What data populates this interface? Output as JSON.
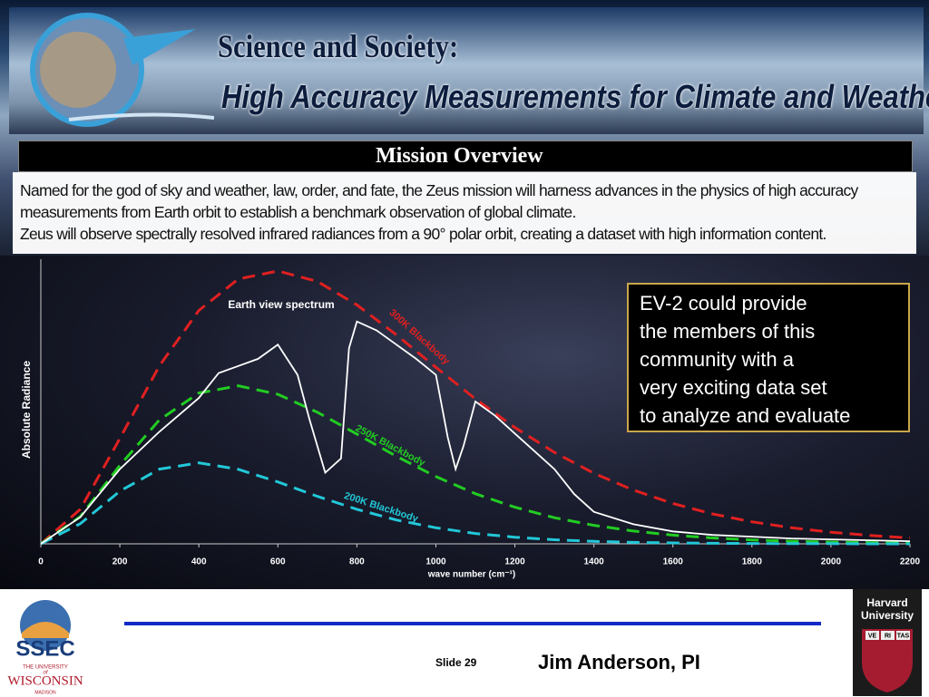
{
  "header": {
    "title": "Science and Society:",
    "subtitle": "High Accuracy Measurements for Climate and Weather",
    "section": "Mission Overview",
    "paragraphs": [
      "Named for the god of sky and weather, law, order, and fate, the Zeus mission will harness advances in the physics of high accuracy measurements from Earth orbit to establish a benchmark observation of global climate.",
      "Zeus will observe spectrally resolved infrared radiances from a 90° polar orbit, creating a dataset with high information content."
    ]
  },
  "chart_data": {
    "type": "line",
    "xlabel": "wave number (cm⁻¹)",
    "ylabel": "Absolute Radiance",
    "x": [
      0,
      100,
      200,
      300,
      400,
      500,
      600,
      700,
      800,
      900,
      1000,
      1100,
      1200,
      1300,
      1400,
      1500,
      1600,
      1700,
      1800,
      1900,
      2000,
      2100,
      2200
    ],
    "xlim": [
      0,
      2200
    ],
    "xticks": [
      0,
      200,
      400,
      600,
      800,
      1000,
      1200,
      1400,
      1600,
      1800,
      2000,
      2200
    ],
    "ylim": [
      0,
      160
    ],
    "series": [
      {
        "name": "300K Blackbody",
        "color": "#e02020",
        "dashed": true,
        "values": [
          0,
          19.4,
          59.2,
          100.0,
          131.2,
          148.9,
          153.4,
          147.5,
          134.3,
          117.5,
          99.2,
          81.5,
          65.4,
          51.4,
          39.7,
          30.2,
          22.7,
          16.8,
          12.4,
          9.0,
          6.5,
          4.7,
          3.3
        ]
      },
      {
        "name": "250K Blackbody",
        "color": "#22cc22",
        "dashed": true,
        "values": [
          0,
          15.3,
          44.1,
          69.6,
          84.8,
          88.8,
          84.1,
          74.0,
          61.7,
          49.2,
          37.8,
          28.2,
          20.6,
          14.7,
          10.4,
          7.2,
          4.9,
          3.3,
          2.2,
          1.5,
          1.0,
          0.7,
          0.4
        ]
      },
      {
        "name": "200K Blackbody",
        "color": "#22c8d8",
        "dashed": true,
        "values": [
          0,
          11.3,
          29.6,
          42.0,
          45.5,
          41.9,
          34.8,
          26.7,
          19.4,
          13.4,
          9.0,
          5.8,
          3.7,
          2.3,
          1.4,
          0.8,
          0.5,
          0.3,
          0.2,
          0.1,
          0.1,
          0.0,
          0.0
        ]
      },
      {
        "name": "Earth view spectrum",
        "color": "#ffffff",
        "dashed": false,
        "x": [
          0,
          100,
          200,
          300,
          400,
          450,
          500,
          550,
          600,
          650,
          680,
          720,
          760,
          780,
          800,
          850,
          900,
          950,
          1000,
          1030,
          1050,
          1070,
          1100,
          1150,
          1200,
          1250,
          1300,
          1350,
          1400,
          1500,
          1600,
          1700,
          1800,
          1900,
          2000,
          2100,
          2200
        ],
        "values": [
          0,
          15,
          42,
          63,
          82,
          96,
          100,
          104,
          112,
          95,
          70,
          40,
          48,
          110,
          125,
          120,
          112,
          104,
          95,
          60,
          42,
          55,
          80,
          72,
          62,
          52,
          42,
          28,
          18,
          11,
          7,
          5,
          4,
          3,
          2.5,
          2,
          1.5
        ]
      }
    ]
  },
  "callout": {
    "lines": [
      "EV-2 could provide",
      "the members of this",
      "community with a",
      "very exciting data set",
      "to analyze and evaluate"
    ]
  },
  "footer": {
    "slide": "Slide 29",
    "presenter": "Jim Anderson, PI",
    "ssec": {
      "name": "SSEC",
      "top": "THE UNIVERSITY",
      "of": "of",
      "university": "WISCONSIN",
      "city": "MADISON"
    },
    "harvard": {
      "line1": "Harvard",
      "line2": "University",
      "shield": [
        "VE",
        "RI",
        "TAS"
      ]
    }
  }
}
